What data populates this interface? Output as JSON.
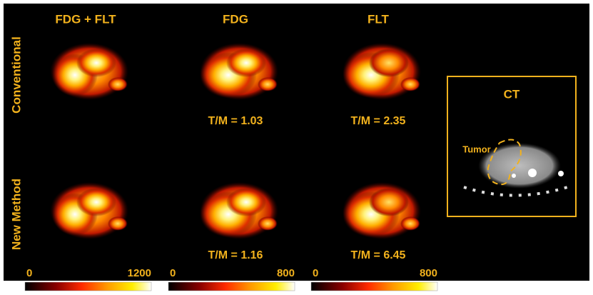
{
  "columns": [
    "FDG + FLT",
    "FDG",
    "FLT"
  ],
  "rows": [
    "Conventional",
    "New Method"
  ],
  "ratios": [
    [
      "T/M = 1.03",
      "T/M = 2.35"
    ],
    [
      "T/M = 1.16",
      "T/M = 6.45"
    ]
  ],
  "colorbars": [
    {
      "min": 0,
      "max": 1200
    },
    {
      "min": 0,
      "max": 800
    },
    {
      "min": 0,
      "max": 800
    }
  ],
  "ct": {
    "title": "CT",
    "label": "Tumor"
  }
}
